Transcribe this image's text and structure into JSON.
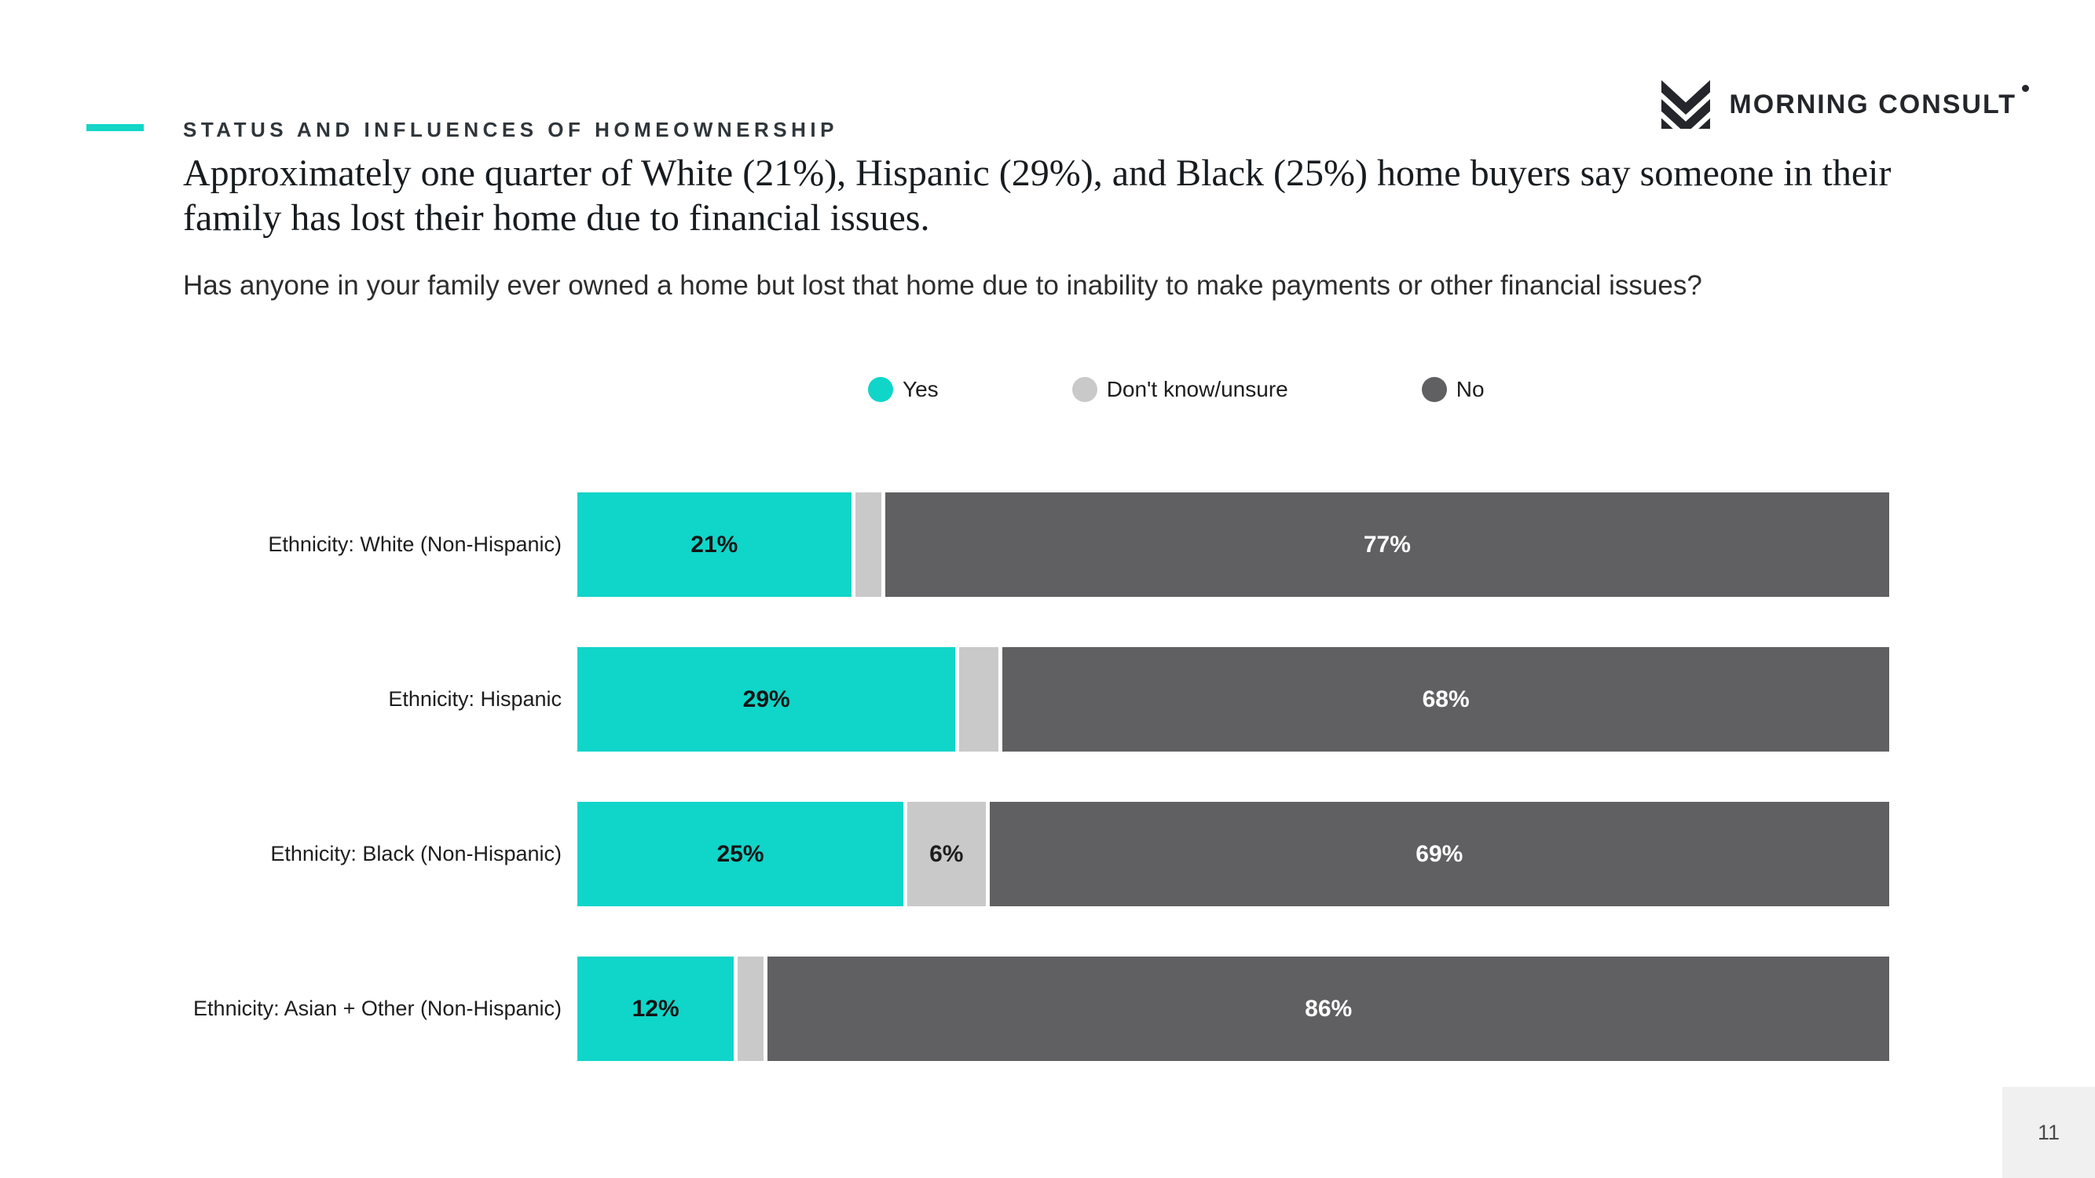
{
  "slide": {
    "eyebrow": "STATUS AND INFLUENCES OF HOMEOWNERSHIP",
    "title": "Approximately one quarter of White (21%), Hispanic (29%), and Black (25%) home buyers say someone in their family has lost their home due to financial issues.",
    "subtitle": "Has anyone in your family ever owned a home but lost that home due to inability to make payments or other financial issues?",
    "page_number": "11"
  },
  "logo": {
    "brand": "MORNING CONSULT",
    "mark_icon": "mc-chevron-m-icon"
  },
  "colors": {
    "accent": "#13d6c7",
    "yes": "#10d5c9",
    "dont_know": "#c9c9c9",
    "no": "#606062",
    "ink": "#1d1d1d",
    "logo_ink": "#24262b",
    "page_box_bg": "#f0f0f0"
  },
  "chart_data": {
    "type": "bar",
    "orientation": "horizontal-stacked",
    "title": "",
    "xlabel": "",
    "ylabel": "",
    "xlim": [
      0,
      100
    ],
    "value_suffix": "%",
    "grid": false,
    "legend_position": "top",
    "categories": [
      "Ethnicity: White (Non-Hispanic)",
      "Ethnicity: Hispanic",
      "Ethnicity: Black (Non-Hispanic)",
      "Ethnicity: Asian + Other (Non-Hispanic)"
    ],
    "series": [
      {
        "name": "Yes",
        "color": "#10d5c9",
        "label_color": "#141414",
        "values": [
          21,
          29,
          25,
          12
        ],
        "labels": [
          "21%",
          "29%",
          "25%",
          "12%"
        ]
      },
      {
        "name": "Don't know/unsure",
        "color": "#c9c9c9",
        "label_color": "#1d1d1d",
        "values": [
          2,
          3,
          6,
          2
        ],
        "labels": [
          "",
          "",
          "6%",
          ""
        ]
      },
      {
        "name": "No",
        "color": "#606062",
        "label_color": "#ffffff",
        "values": [
          77,
          68,
          69,
          86
        ],
        "labels": [
          "77%",
          "68%",
          "69%",
          "86%"
        ]
      }
    ]
  }
}
